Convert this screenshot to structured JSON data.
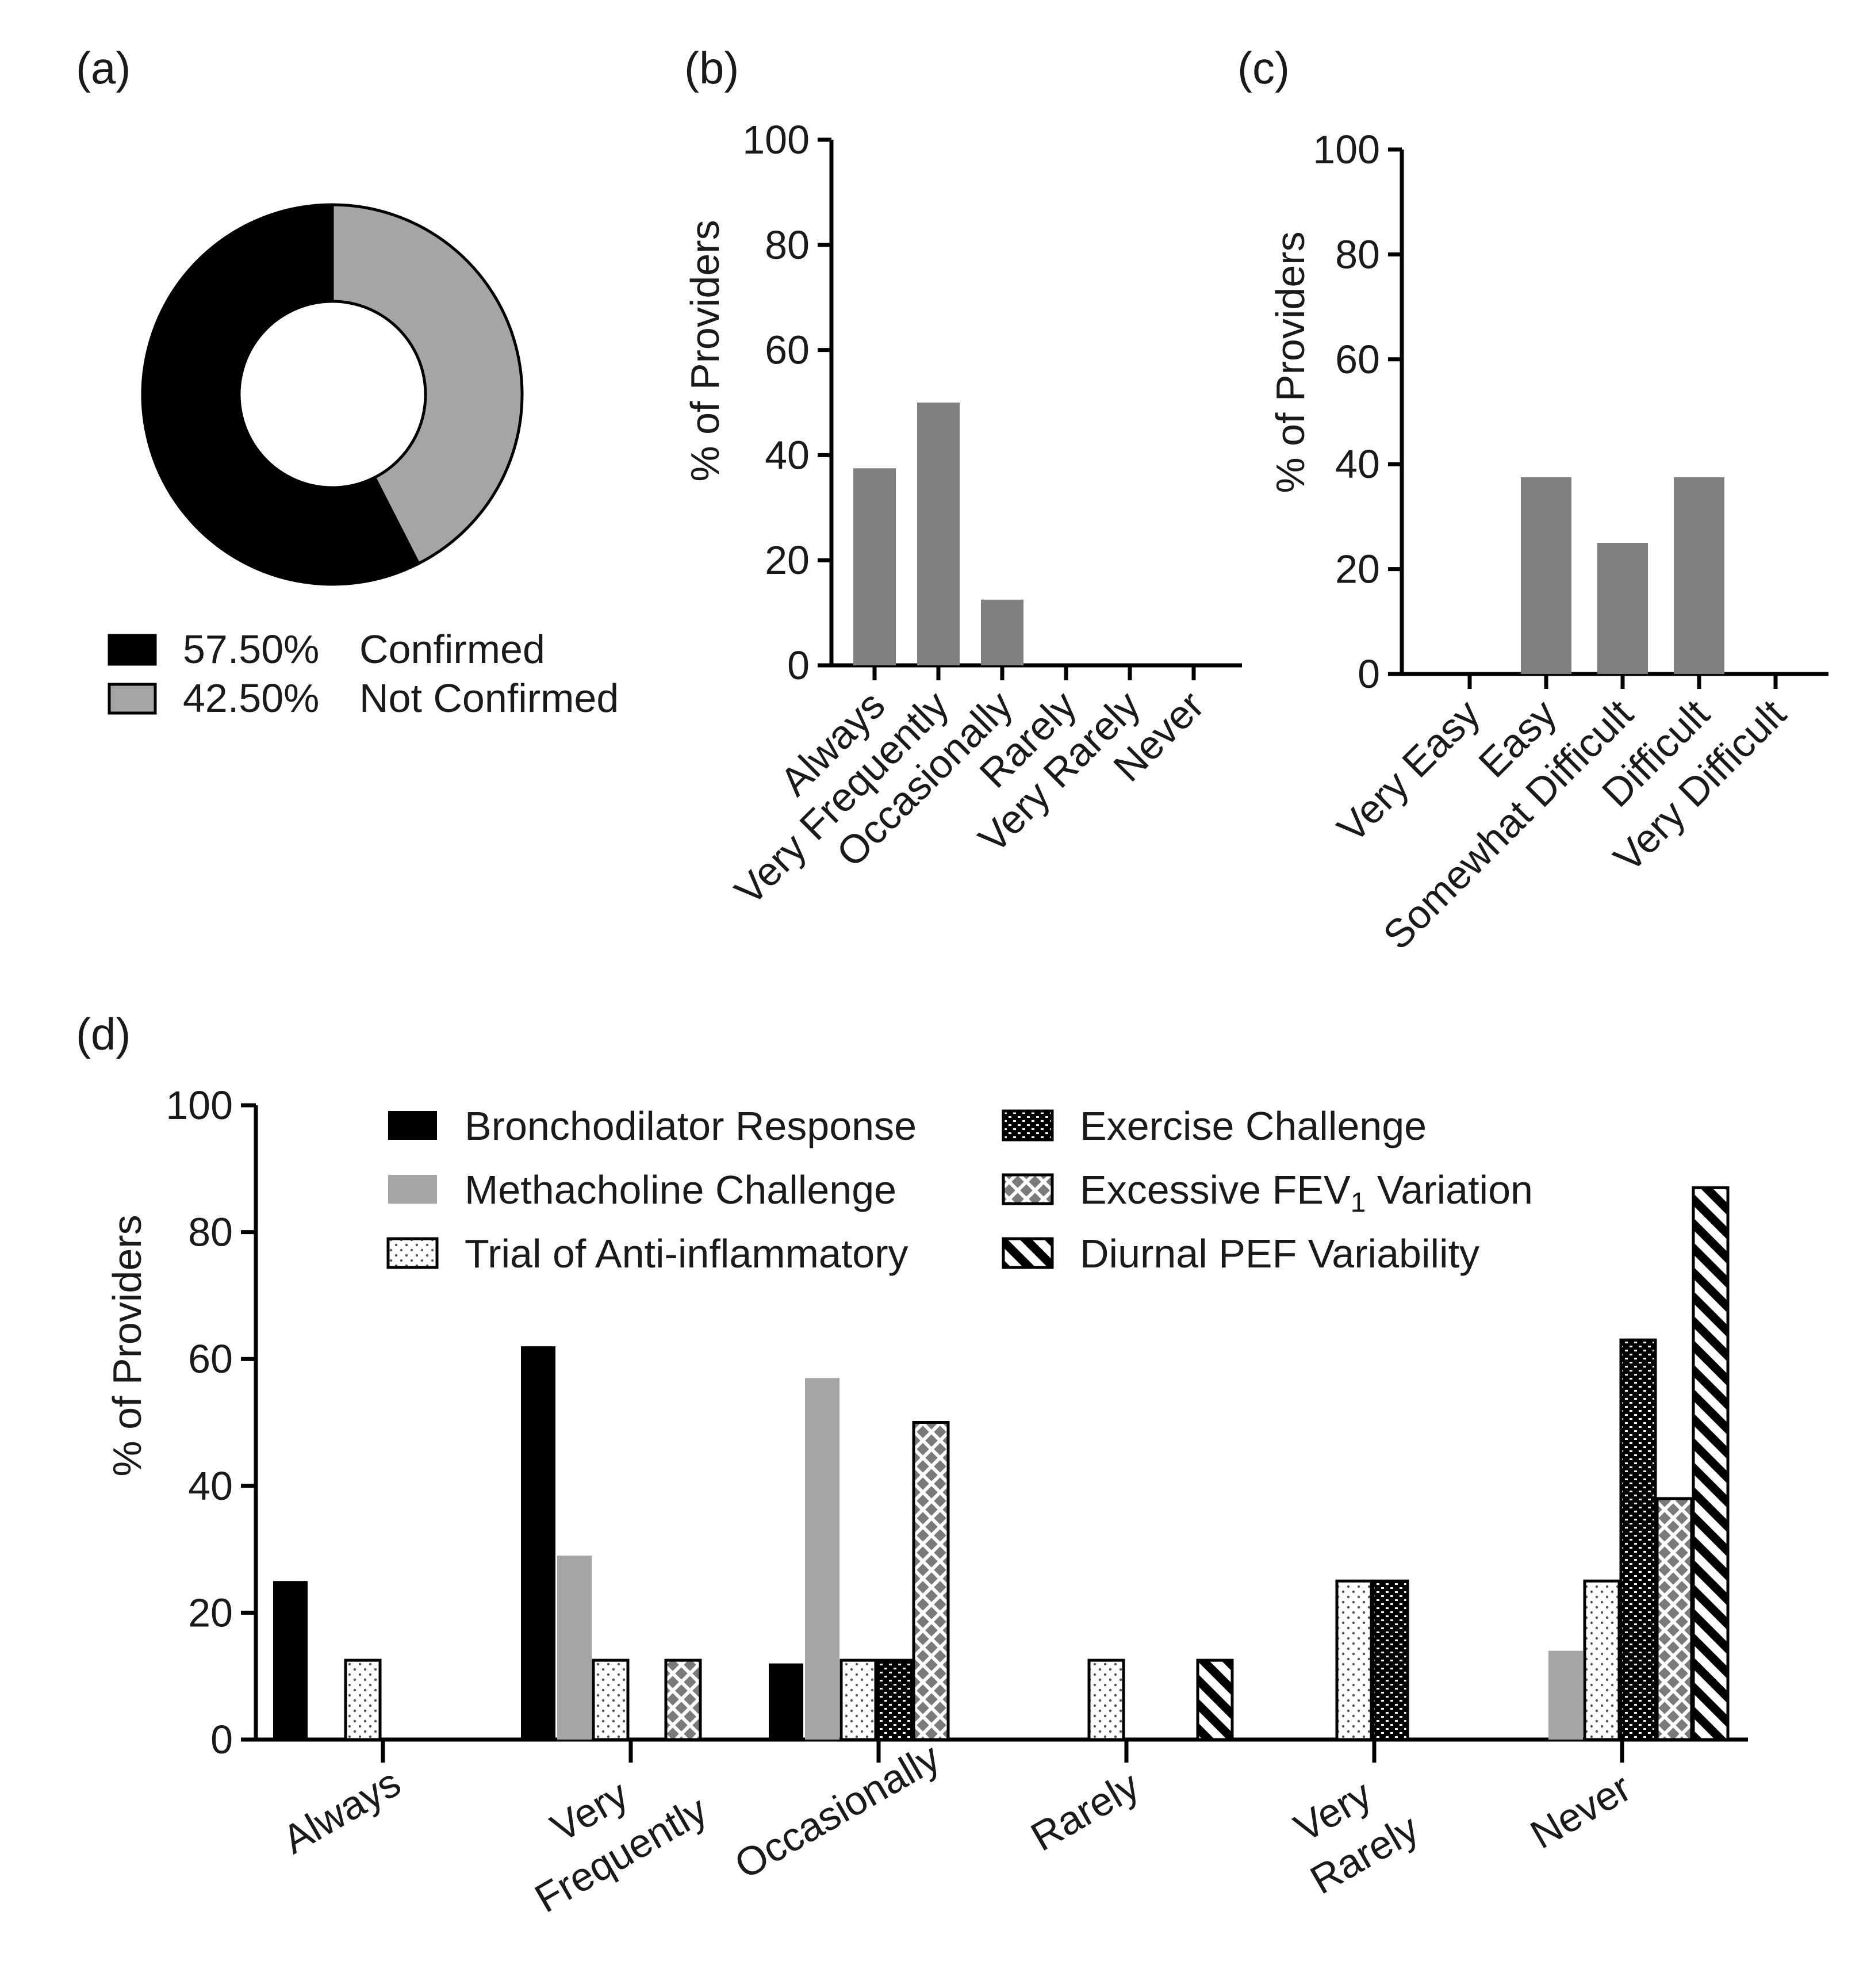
{
  "chart_data": [
    {
      "panel": "(a)",
      "type": "pie",
      "style": "donut",
      "slices": [
        {
          "label": "Confirmed",
          "value": 57.5,
          "value_label": "57.50%",
          "color": "#000000"
        },
        {
          "label": "Not Confirmed",
          "value": 42.5,
          "value_label": "42.50%",
          "color": "#a5a5a8"
        }
      ],
      "legend_position": "bottom"
    },
    {
      "panel": "(b)",
      "type": "bar",
      "categories": [
        "Always",
        "Very Frequently",
        "Occasionally",
        "Rarely",
        "Very Rarely",
        "Never"
      ],
      "values": [
        37.5,
        50,
        12.5,
        0,
        0,
        0
      ],
      "color": "#808080",
      "ylabel": "% of Providers",
      "xlabel": "",
      "ylim": [
        0,
        100
      ],
      "yticks": [
        "0",
        "20",
        "40",
        "60",
        "80",
        "100"
      ],
      "grid": false
    },
    {
      "panel": "(c)",
      "type": "bar",
      "categories": [
        "Very Easy",
        "Easy",
        "Somewhat Difficult",
        "Difficult",
        "Very Difficult"
      ],
      "values": [
        0,
        37.5,
        25,
        37.5,
        0
      ],
      "color": "#808080",
      "ylabel": "% of Providers",
      "xlabel": "",
      "ylim": [
        0,
        100
      ],
      "yticks": [
        "0",
        "20",
        "40",
        "60",
        "80",
        "100"
      ],
      "grid": false
    },
    {
      "panel": "(d)",
      "type": "bar",
      "categories": [
        [
          "Always"
        ],
        [
          "Very",
          "Frequently"
        ],
        [
          "Occasionally"
        ],
        [
          "Rarely"
        ],
        [
          "Very",
          "Rarely"
        ],
        [
          "Never"
        ]
      ],
      "series": [
        {
          "name": "Bronchodilator Response",
          "pattern": "solid-black",
          "values": [
            25,
            62,
            12,
            0,
            0,
            0
          ]
        },
        {
          "name": "Methacholine Challenge",
          "pattern": "solid-gray",
          "values": [
            0,
            29,
            57,
            0,
            0,
            14
          ]
        },
        {
          "name": "Trial of Anti-inflammatory",
          "pattern": "dots",
          "values": [
            12.5,
            12.5,
            12.5,
            12.5,
            25,
            25
          ]
        },
        {
          "name": "Exercise Challenge",
          "pattern": "brick",
          "values": [
            0,
            0,
            12.5,
            0,
            25,
            63
          ]
        },
        {
          "name": "Excessive FEV",
          "name_subscript": "1",
          "name_suffix": " Variation",
          "pattern": "crosshatch",
          "values": [
            0,
            12.5,
            50,
            0,
            0,
            38
          ]
        },
        {
          "name": "Diurnal PEF Variability",
          "pattern": "diagonal",
          "values": [
            0,
            0,
            0,
            12.5,
            0,
            87
          ]
        }
      ],
      "ylabel": "% of Providers",
      "xlabel": "",
      "ylim": [
        0,
        100
      ],
      "yticks": [
        "0",
        "20",
        "40",
        "60",
        "80",
        "100"
      ],
      "legend_position": "top",
      "grid": false
    }
  ]
}
